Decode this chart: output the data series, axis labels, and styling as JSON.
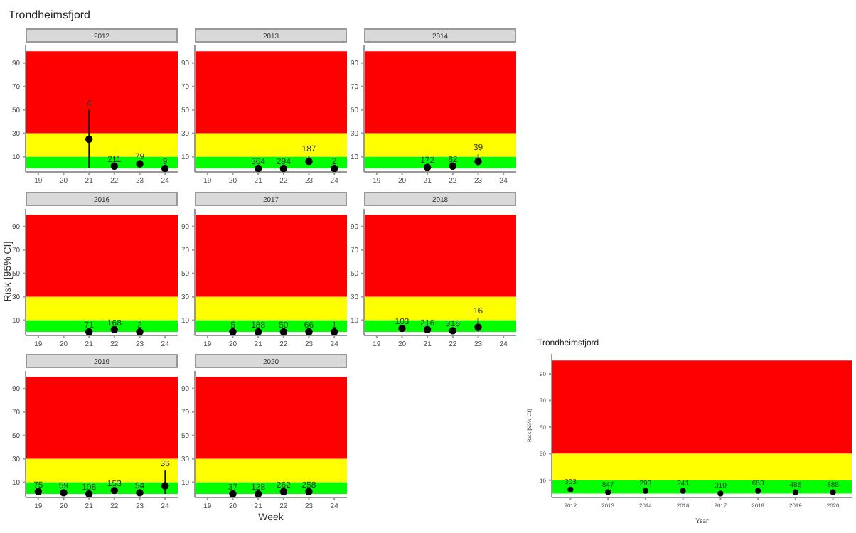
{
  "chart_data": [
    {
      "type": "scatter",
      "title": "Trondheimsfjord",
      "subtitle": "2012",
      "x": [
        21,
        22,
        23,
        24
      ],
      "values": [
        25,
        2,
        4,
        0
      ],
      "errors": [
        [
          0,
          50
        ],
        null,
        null,
        null
      ],
      "annotations": [
        {
          "text": "4",
          "x": 21,
          "y": 50
        },
        {
          "text": "211",
          "x": 22,
          "y": 2
        },
        {
          "text": "79",
          "x": 23,
          "y": 4
        },
        {
          "text": "9",
          "x": 24,
          "y": 0
        }
      ],
      "color": "#000000",
      "marker": "circle",
      "xlim": [
        18.5,
        24.5
      ],
      "xticks": [
        19,
        20,
        21,
        22,
        23,
        24
      ],
      "ylim": [
        -3,
        105
      ],
      "yticks": [
        10,
        30,
        50,
        70,
        90
      ],
      "bands": [
        {
          "axis": "y",
          "from": 0,
          "to": 10,
          "color": "#00ff00"
        },
        {
          "axis": "y",
          "from": 10,
          "to": 30,
          "color": "#ffff00"
        },
        {
          "axis": "y",
          "from": 30,
          "to": 100,
          "color": "#ff0000"
        }
      ]
    },
    {
      "type": "scatter",
      "subtitle": "2013",
      "x": [
        21,
        22,
        23,
        24
      ],
      "values": [
        0,
        0,
        6,
        0
      ],
      "errors": [
        null,
        null,
        [
          3,
          11
        ],
        null
      ],
      "annotations": [
        {
          "text": "364",
          "x": 21,
          "y": 0
        },
        {
          "text": "294",
          "x": 22,
          "y": 0
        },
        {
          "text": "187",
          "x": 23,
          "y": 11
        },
        {
          "text": "2",
          "x": 24,
          "y": 0
        }
      ],
      "color": "#000000",
      "marker": "circle",
      "xlim": [
        18.5,
        24.5
      ],
      "xticks": [
        19,
        20,
        21,
        22,
        23,
        24
      ],
      "ylim": [
        -3,
        105
      ],
      "yticks": [
        10,
        30,
        50,
        70,
        90
      ],
      "bands": [
        {
          "axis": "y",
          "from": 0,
          "to": 10,
          "color": "#00ff00"
        },
        {
          "axis": "y",
          "from": 10,
          "to": 30,
          "color": "#ffff00"
        },
        {
          "axis": "y",
          "from": 30,
          "to": 100,
          "color": "#ff0000"
        }
      ]
    },
    {
      "type": "scatter",
      "subtitle": "2014",
      "x": [
        21,
        22,
        23
      ],
      "values": [
        1,
        2,
        6
      ],
      "errors": [
        null,
        null,
        [
          2,
          12
        ]
      ],
      "annotations": [
        {
          "text": "172",
          "x": 21,
          "y": 1
        },
        {
          "text": "82",
          "x": 22,
          "y": 2
        },
        {
          "text": "39",
          "x": 23,
          "y": 12
        }
      ],
      "color": "#000000",
      "marker": "circle",
      "xlim": [
        18.5,
        24.5
      ],
      "xticks": [
        19,
        20,
        21,
        22,
        23,
        24
      ],
      "ylim": [
        -3,
        105
      ],
      "yticks": [
        10,
        30,
        50,
        70,
        90
      ],
      "bands": [
        {
          "axis": "y",
          "from": 0,
          "to": 10,
          "color": "#00ff00"
        },
        {
          "axis": "y",
          "from": 10,
          "to": 30,
          "color": "#ffff00"
        },
        {
          "axis": "y",
          "from": 30,
          "to": 100,
          "color": "#ff0000"
        }
      ]
    },
    {
      "type": "scatter",
      "subtitle": "2016",
      "ylabel": "Risk [95% CI]",
      "x": [
        21,
        22,
        23
      ],
      "values": [
        0,
        2,
        0
      ],
      "annotations": [
        {
          "text": "71",
          "x": 21,
          "y": 0
        },
        {
          "text": "168",
          "x": 22,
          "y": 2
        },
        {
          "text": "2",
          "x": 23,
          "y": 0
        }
      ],
      "color": "#000000",
      "marker": "circle",
      "xlim": [
        18.5,
        24.5
      ],
      "xticks": [
        19,
        20,
        21,
        22,
        23,
        24
      ],
      "ylim": [
        -3,
        105
      ],
      "yticks": [
        10,
        30,
        50,
        70,
        90
      ],
      "bands": [
        {
          "axis": "y",
          "from": 0,
          "to": 10,
          "color": "#00ff00"
        },
        {
          "axis": "y",
          "from": 10,
          "to": 30,
          "color": "#ffff00"
        },
        {
          "axis": "y",
          "from": 30,
          "to": 100,
          "color": "#ff0000"
        }
      ]
    },
    {
      "type": "scatter",
      "subtitle": "2017",
      "x": [
        20,
        21,
        22,
        23,
        24
      ],
      "values": [
        0,
        0,
        0,
        0,
        0
      ],
      "annotations": [
        {
          "text": "5",
          "x": 20,
          "y": 0
        },
        {
          "text": "188",
          "x": 21,
          "y": 0
        },
        {
          "text": "50",
          "x": 22,
          "y": 0
        },
        {
          "text": "66",
          "x": 23,
          "y": 0
        },
        {
          "text": "1",
          "x": 24,
          "y": 0
        }
      ],
      "color": "#000000",
      "marker": "circle",
      "xlim": [
        18.5,
        24.5
      ],
      "xticks": [
        19,
        20,
        21,
        22,
        23,
        24
      ],
      "ylim": [
        -3,
        105
      ],
      "yticks": [
        10,
        30,
        50,
        70,
        90
      ],
      "bands": [
        {
          "axis": "y",
          "from": 0,
          "to": 10,
          "color": "#00ff00"
        },
        {
          "axis": "y",
          "from": 10,
          "to": 30,
          "color": "#ffff00"
        },
        {
          "axis": "y",
          "from": 30,
          "to": 100,
          "color": "#ff0000"
        }
      ]
    },
    {
      "type": "scatter",
      "subtitle": "2018",
      "x": [
        20,
        21,
        22,
        23
      ],
      "values": [
        3,
        2,
        1,
        4
      ],
      "errors": [
        null,
        null,
        null,
        [
          0,
          12
        ]
      ],
      "annotations": [
        {
          "text": "103",
          "x": 20,
          "y": 3
        },
        {
          "text": "216",
          "x": 21,
          "y": 2
        },
        {
          "text": "318",
          "x": 22,
          "y": 1
        },
        {
          "text": "16",
          "x": 23,
          "y": 12
        }
      ],
      "color": "#000000",
      "marker": "circle",
      "xlim": [
        18.5,
        24.5
      ],
      "xticks": [
        19,
        20,
        21,
        22,
        23,
        24
      ],
      "ylim": [
        -3,
        105
      ],
      "yticks": [
        10,
        30,
        50,
        70,
        90
      ],
      "bands": [
        {
          "axis": "y",
          "from": 0,
          "to": 10,
          "color": "#00ff00"
        },
        {
          "axis": "y",
          "from": 10,
          "to": 30,
          "color": "#ffff00"
        },
        {
          "axis": "y",
          "from": 30,
          "to": 100,
          "color": "#ff0000"
        }
      ]
    },
    {
      "type": "scatter",
      "subtitle": "2019",
      "x": [
        19,
        20,
        21,
        22,
        23,
        24
      ],
      "values": [
        2,
        1,
        0,
        3,
        1,
        7
      ],
      "errors": [
        null,
        null,
        null,
        null,
        null,
        [
          0,
          20
        ]
      ],
      "annotations": [
        {
          "text": "75",
          "x": 19,
          "y": 2
        },
        {
          "text": "59",
          "x": 20,
          "y": 1
        },
        {
          "text": "108",
          "x": 21,
          "y": 0
        },
        {
          "text": "153",
          "x": 22,
          "y": 3
        },
        {
          "text": "54",
          "x": 23,
          "y": 1
        },
        {
          "text": "36",
          "x": 24,
          "y": 20
        }
      ],
      "color": "#000000",
      "marker": "circle",
      "xlim": [
        18.5,
        24.5
      ],
      "xticks": [
        19,
        20,
        21,
        22,
        23,
        24
      ],
      "ylim": [
        -3,
        105
      ],
      "yticks": [
        10,
        30,
        50,
        70,
        90
      ],
      "bands": [
        {
          "axis": "y",
          "from": 0,
          "to": 10,
          "color": "#00ff00"
        },
        {
          "axis": "y",
          "from": 10,
          "to": 30,
          "color": "#ffff00"
        },
        {
          "axis": "y",
          "from": 30,
          "to": 100,
          "color": "#ff0000"
        }
      ]
    },
    {
      "type": "scatter",
      "subtitle": "2020",
      "xlabel": "Week",
      "x": [
        20,
        21,
        22,
        23
      ],
      "values": [
        0,
        0,
        2,
        2
      ],
      "annotations": [
        {
          "text": "37",
          "x": 20,
          "y": 0
        },
        {
          "text": "128",
          "x": 21,
          "y": 0
        },
        {
          "text": "262",
          "x": 22,
          "y": 2
        },
        {
          "text": "258",
          "x": 23,
          "y": 2
        }
      ],
      "color": "#000000",
      "marker": "circle",
      "xlim": [
        18.5,
        24.5
      ],
      "xticks": [
        19,
        20,
        21,
        22,
        23,
        24
      ],
      "ylim": [
        -3,
        105
      ],
      "yticks": [
        10,
        30,
        50,
        70,
        90
      ],
      "bands": [
        {
          "axis": "y",
          "from": 0,
          "to": 10,
          "color": "#00ff00"
        },
        {
          "axis": "y",
          "from": 10,
          "to": 30,
          "color": "#ffff00"
        },
        {
          "axis": "y",
          "from": 30,
          "to": 100,
          "color": "#ff0000"
        }
      ]
    },
    {
      "type": "scatter",
      "title": "Trondheimsfjord",
      "xlabel": "Year",
      "ylabel": "Risk [95% CI]",
      "categories": [
        "2012",
        "2013",
        "2014",
        "2016",
        "2017",
        "2018",
        "2019",
        "2020"
      ],
      "values": [
        3,
        1,
        2,
        2,
        0,
        2,
        1,
        1
      ],
      "annotations": [
        {
          "text": "303",
          "x": "2012",
          "y": 3
        },
        {
          "text": "847",
          "x": "2013",
          "y": 1
        },
        {
          "text": "293",
          "x": "2014",
          "y": 2
        },
        {
          "text": "241",
          "x": "2016",
          "y": 2
        },
        {
          "text": "310",
          "x": "2017",
          "y": 0
        },
        {
          "text": "653",
          "x": "2018",
          "y": 2
        },
        {
          "text": "485",
          "x": "2019",
          "y": 1
        },
        {
          "text": "685",
          "x": "2020",
          "y": 1
        }
      ],
      "color": "#000000",
      "marker": "circle",
      "ylim": [
        -3,
        105
      ],
      "yticks": [
        10,
        30,
        50,
        70,
        90
      ],
      "bands": [
        {
          "axis": "y",
          "from": 0,
          "to": 10,
          "color": "#00ff00"
        },
        {
          "axis": "y",
          "from": 10,
          "to": 30,
          "color": "#ffff00"
        },
        {
          "axis": "y",
          "from": 30,
          "to": 100,
          "color": "#ff0000"
        }
      ]
    }
  ]
}
